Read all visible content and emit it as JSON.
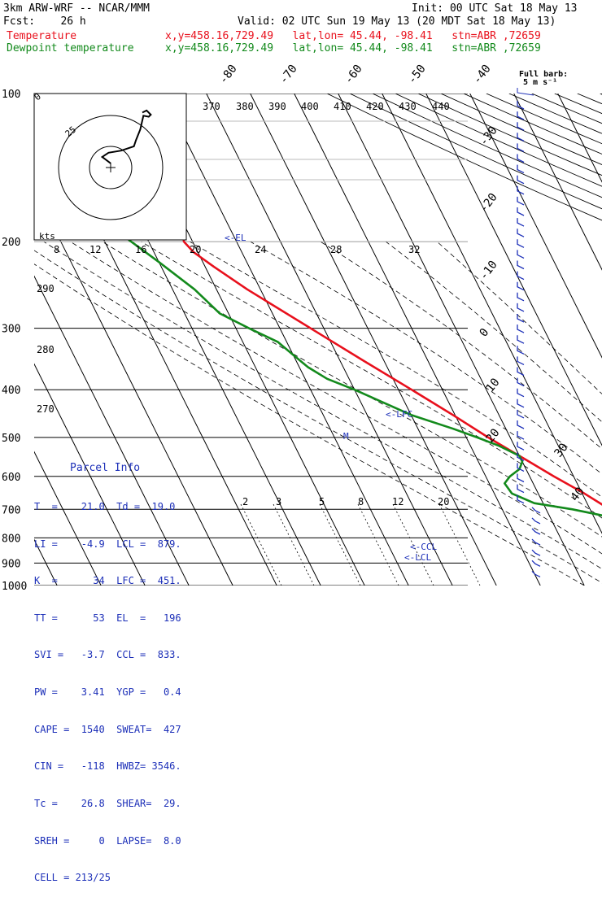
{
  "header": {
    "line1_left": "3km ARW-WRF -- NCAR/MMM",
    "line1_right": "Init: 00 UTC Sat 18 May 13",
    "line2_left": "Fcst:    26 h",
    "line2_right": "Valid: 02 UTC Sun 19 May 13 (20 MDT Sat 18 May 13)",
    "line3_label": "Temperature",
    "line3_info": "x,y=458.16,729.49   lat,lon= 45.44, -98.41   stn=ABR ,72659",
    "line4_label": "Dewpoint temperature",
    "line4_info": "x,y=458.16,729.49   lat,lon= 45.44, -98.41   stn=ABR ,72659"
  },
  "parcel_info": {
    "title": "Parcel Info",
    "rows": [
      "T  =    21.0  Td =  19.0",
      "LI =    -4.9  LCL =  879.",
      "K  =      34  LFC =  451.",
      "TT =      53  EL  =   196",
      "SVI =   -3.7  CCL =  833.",
      "PW =    3.41  YGP =   0.4",
      "CAPE =  1540  SWEAT=  427",
      "CIN =   -118  HWBZ= 3546.",
      "Tc =    26.8  SHEAR=  29.",
      "SREH =     0  LAPSE=  8.0",
      "CELL = 213/25"
    ]
  },
  "annotations": {
    "el": "<-EL",
    "lfc": "<-LFC",
    "ccl": "<-CCL",
    "lcl": "<-LCL",
    "m": "M",
    "full_barb_line1": "Full barb:",
    "full_barb_line2": "5 m s⁻¹",
    "hodo_kts": "kts",
    "hodo_ring": "25"
  },
  "colors": {
    "temperature": "#e8101c",
    "dewpoint": "#138a1c",
    "grid": "#000000",
    "annotation": "#1c2fb8"
  },
  "chart_data": {
    "type": "line",
    "title": "",
    "ylabel": "",
    "xlabel": "",
    "pressure_axis": {
      "scale": "log",
      "ylim": [
        1000,
        100
      ],
      "ticks": [
        100,
        200,
        300,
        400,
        500,
        600,
        700,
        800,
        900,
        1000
      ]
    },
    "isotherm_labels": [
      -80,
      -70,
      -60,
      -50,
      -40,
      -30,
      -20,
      -10,
      0,
      10,
      20,
      30,
      40
    ],
    "theta_labels": [
      370,
      380,
      390,
      400,
      410,
      420,
      430,
      440
    ],
    "dry_adiabat_labels": [
      290,
      280,
      270
    ],
    "hodograph_speed_labels": [
      8,
      12,
      16,
      20,
      24,
      28,
      32
    ],
    "mixing_ratio_labels": [
      2,
      3,
      5,
      8,
      12,
      20
    ],
    "series": [
      {
        "name": "Temperature",
        "pressure_hpa": [
          945,
          935,
          925,
          900,
          880,
          850,
          800,
          750,
          700,
          650,
          600,
          550,
          500,
          450,
          400,
          350,
          300,
          250,
          225,
          210,
          200,
          180,
          150,
          130,
          115,
          100
        ],
        "temperature_c": [
          21.0,
          20.2,
          19.5,
          18.6,
          17.8,
          15.2,
          11.8,
          8.5,
          4.5,
          0.5,
          -4.5,
          -9.5,
          -15.0,
          -20.5,
          -27.0,
          -34.5,
          -43.0,
          -53.0,
          -58.0,
          -61.0,
          -62.0,
          -60.0,
          -56.0,
          -52.0,
          -50.0,
          -48.0
        ]
      },
      {
        "name": "Dewpoint temperature",
        "pressure_hpa": [
          945,
          935,
          925,
          900,
          880,
          850,
          800,
          750,
          720,
          700,
          680,
          650,
          620,
          600,
          580,
          560,
          545,
          520,
          500,
          480,
          450,
          400,
          380,
          360,
          340,
          320,
          300,
          280,
          250,
          220,
          200,
          180,
          160,
          150,
          140,
          130,
          115,
          100
        ],
        "temperature_c": [
          19.0,
          18.5,
          18.2,
          17.5,
          16.8,
          15.5,
          12.5,
          7.5,
          2.0,
          -4.0,
          -12.0,
          -16.0,
          -16.5,
          -14.5,
          -11.5,
          -10.0,
          -10.0,
          -13.5,
          -17.5,
          -22.0,
          -30.0,
          -40.0,
          -45.0,
          -48.0,
          -50.0,
          -52.0,
          -57.0,
          -62.0,
          -65.0,
          -70.0,
          -74.0,
          -78.0,
          -82.0,
          -84.0,
          -85.0,
          -83.0,
          -79.0,
          -76.0
        ]
      }
    ],
    "hodograph_points": [
      [
        0.0,
        2.0
      ],
      [
        -4.0,
        5.0
      ],
      [
        -1.0,
        7.0
      ],
      [
        5.0,
        8.0
      ],
      [
        11.0,
        10.0
      ],
      [
        12.0,
        13.0
      ],
      [
        14.0,
        18.0
      ],
      [
        15.5,
        24.5
      ],
      [
        18.0,
        24.0
      ],
      [
        19.0,
        25.0
      ],
      [
        17.0,
        27.0
      ],
      [
        15.0,
        26.0
      ]
    ],
    "wind_profile_count": 46
  }
}
